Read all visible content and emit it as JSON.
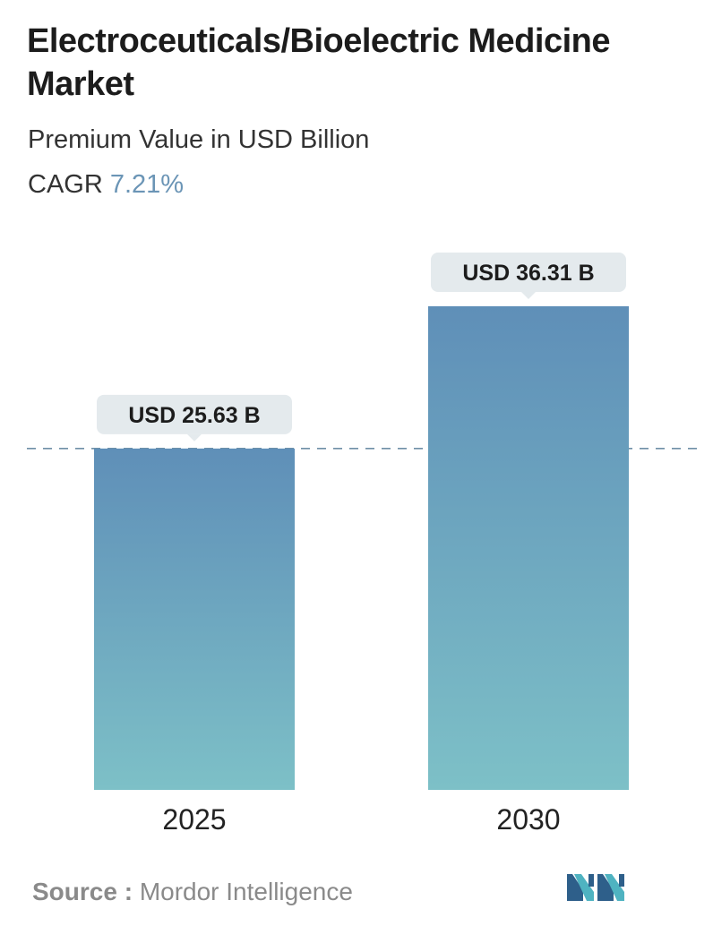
{
  "header": {
    "title": "Electroceuticals/Bioelectric Medicine Market",
    "subtitle": "Premium Value in USD Billion",
    "cagr_label": "CAGR",
    "cagr_value": "7.21%"
  },
  "chart_data": {
    "type": "bar",
    "categories": [
      "2025",
      "2030"
    ],
    "values": [
      25.63,
      36.31
    ],
    "data_labels": [
      "USD 25.63 B",
      "USD 36.31 B"
    ],
    "title": "Electroceuticals/Bioelectric Medicine Market",
    "ylabel": "Premium Value in USD Billion",
    "grid": false,
    "reference_line": {
      "value": 25.63,
      "style": "dashed"
    }
  },
  "footer": {
    "source_label": "Source :",
    "source_value": "Mordor Intelligence",
    "logo_icon": "mordor-intelligence-logo"
  },
  "colors": {
    "bar_top": "#5f8fb8",
    "bar_bottom": "#7dc0c7",
    "label_bg": "#e4eaed",
    "dashed_line": "#6f8fa6",
    "logo_dark": "#2e5f8a",
    "logo_light": "#4fb3c1"
  }
}
